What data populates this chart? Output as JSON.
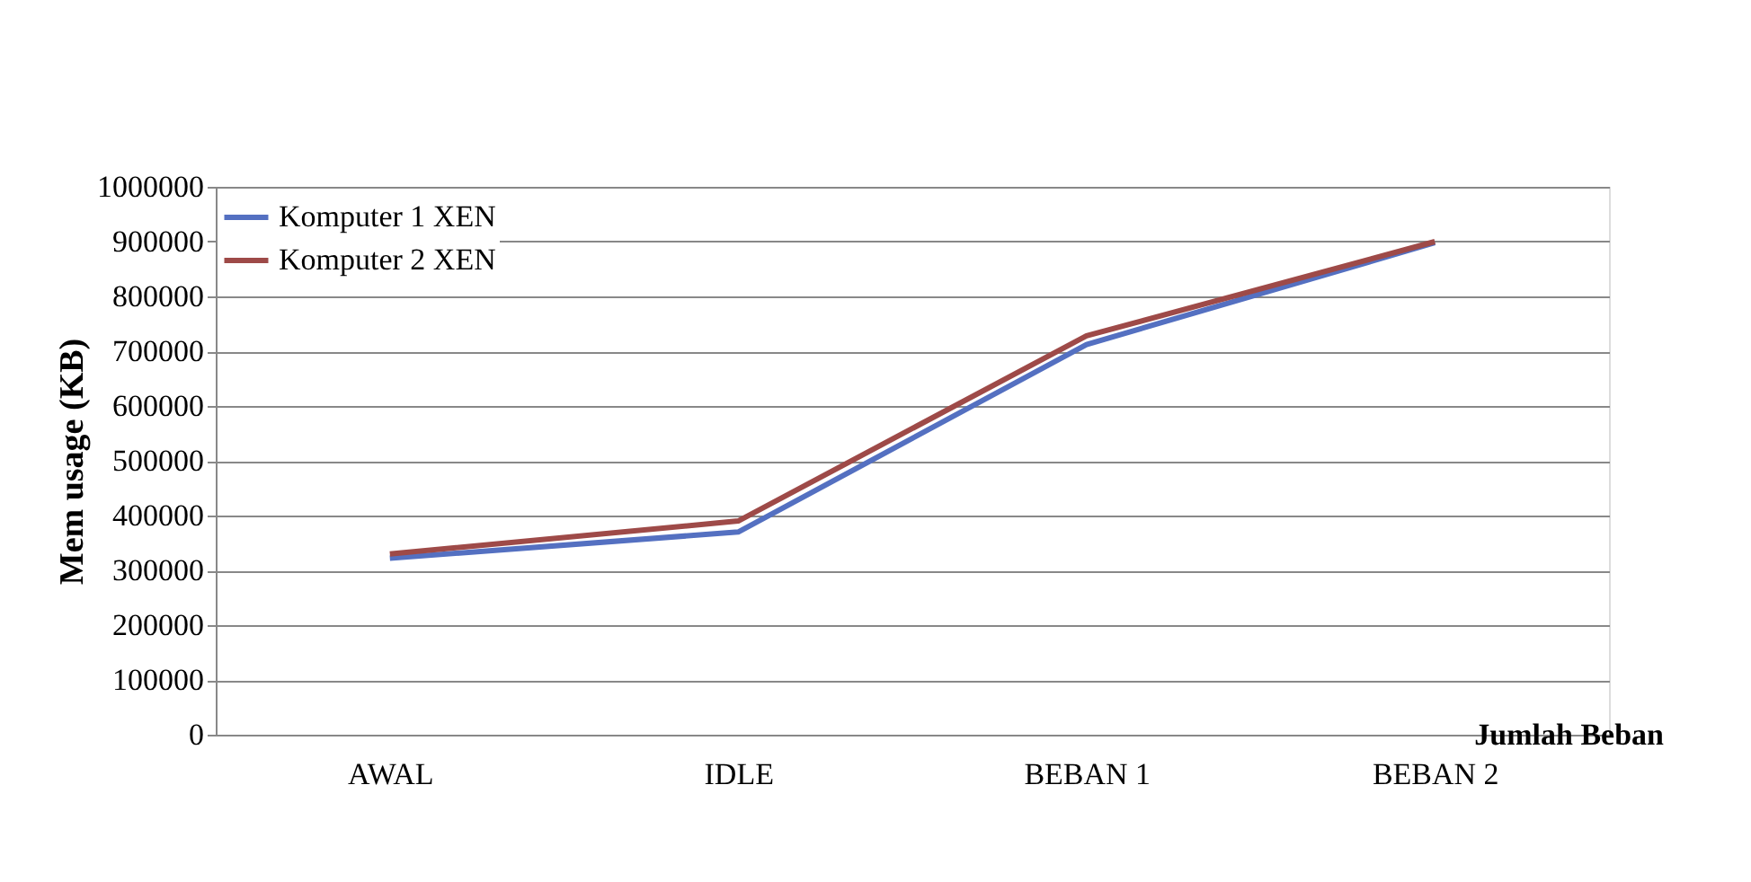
{
  "chart_data": {
    "type": "line",
    "xlabel": "Jumlah Beban",
    "ylabel": "Mem usage (KB)",
    "categories": [
      "AWAL",
      "IDLE",
      "BEBAN 1",
      "BEBAN 2"
    ],
    "series": [
      {
        "name": "Komputer 1 XEN",
        "color": "#5470c1",
        "values": [
          322000,
          370000,
          712000,
          898000
        ]
      },
      {
        "name": "Komputer 2 XEN",
        "color": "#9e4a48",
        "values": [
          330000,
          390000,
          728000,
          900000
        ]
      }
    ],
    "ylim": [
      0,
      1000000
    ],
    "yticks": [
      0,
      100000,
      200000,
      300000,
      400000,
      500000,
      600000,
      700000,
      800000,
      900000,
      1000000
    ],
    "grid": "y",
    "legend": "top left",
    "marker": "none",
    "line_style": "solid"
  }
}
